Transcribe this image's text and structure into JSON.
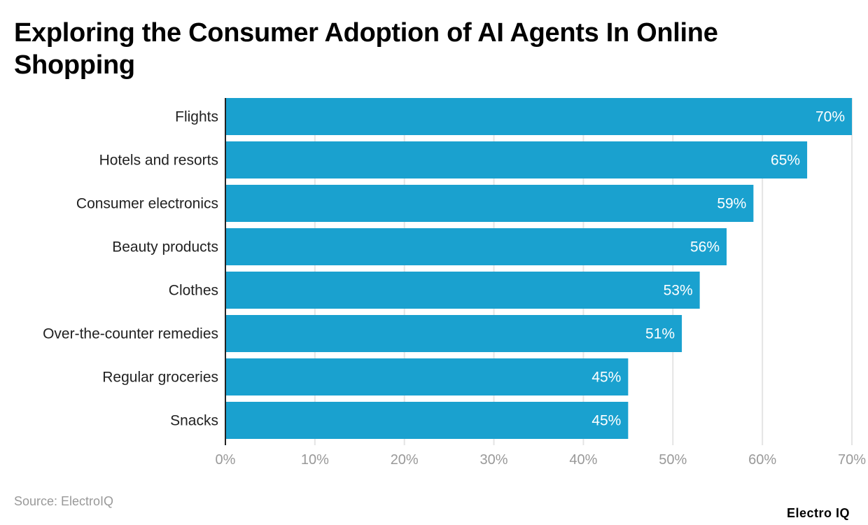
{
  "chart_data": {
    "type": "bar",
    "orientation": "horizontal",
    "title": "Exploring the Consumer Adoption of AI Agents In Online Shopping",
    "categories": [
      "Flights",
      "Hotels and resorts",
      "Consumer electronics",
      "Beauty products",
      "Clothes",
      "Over-the-counter remedies",
      "Regular groceries",
      "Snacks"
    ],
    "values": [
      70,
      65,
      59,
      56,
      53,
      51,
      45,
      45
    ],
    "data_labels": [
      "70%",
      "65%",
      "59%",
      "56%",
      "53%",
      "51%",
      "45%",
      "45%"
    ],
    "xlim": [
      0,
      70
    ],
    "x_ticks": [
      0,
      10,
      20,
      30,
      40,
      50,
      60,
      70
    ],
    "x_tick_labels": [
      "0%",
      "10%",
      "20%",
      "30%",
      "40%",
      "50%",
      "60%",
      "70%"
    ],
    "xlabel": "",
    "ylabel": "",
    "grid": true,
    "bar_color": "#1aa1cf"
  },
  "footer": {
    "source": "Source: ElectroIQ",
    "logo": "Electro IQ"
  }
}
